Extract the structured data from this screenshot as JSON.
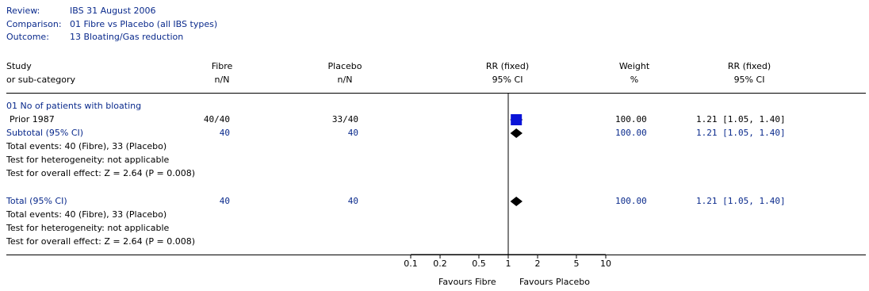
{
  "meta": {
    "review_label": "Review:",
    "review_value": "IBS 31 August 2006",
    "comparison_label": "Comparison:",
    "comparison_value": "01 Fibre vs Placebo (all IBS types)",
    "outcome_label": "Outcome:",
    "outcome_value": "13 Bloating/Gas reduction"
  },
  "headers": {
    "study_1": "Study",
    "study_2": "or sub-category",
    "fibre_1": "Fibre",
    "fibre_2": "n/N",
    "placebo_1": "Placebo",
    "placebo_2": "n/N",
    "rr_1": "RR (fixed)",
    "rr_2": "95% CI",
    "weight_1": "Weight",
    "weight_2": "%",
    "rr2_1": "RR (fixed)",
    "rr2_2": "95% CI"
  },
  "rows": {
    "group_title": "01 No of patients with bloating",
    "study_name": "Prior 1987",
    "study_fibre": "40/40",
    "study_placebo": "33/40",
    "study_weight": "100.00",
    "study_ci": "1.21 [1.05, 1.40]",
    "subtotal_label": "Subtotal (95% CI)",
    "subtotal_fibre": "40",
    "subtotal_placebo": "40",
    "subtotal_weight": "100.00",
    "subtotal_ci": "1.21 [1.05, 1.40]",
    "sub_events": "Total events: 40 (Fibre), 33 (Placebo)",
    "sub_het": "Test for heterogeneity: not applicable",
    "sub_effect": "Test for overall effect: Z = 2.64 (P = 0.008)",
    "total_label": "Total (95% CI)",
    "total_fibre": "40",
    "total_placebo": "40",
    "total_weight": "100.00",
    "total_ci": "1.21 [1.05, 1.40]",
    "total_events": "Total events: 40 (Fibre), 33 (Placebo)",
    "total_het": "Test for heterogeneity: not applicable",
    "total_effect": "Test for overall effect: Z = 2.64 (P = 0.008)"
  },
  "axis": {
    "favours_left": "Favours Fibre",
    "favours_right": "Favours Placebo"
  },
  "colors": {
    "study_marker": "#0a14d8",
    "diamond": "#000000",
    "text_blue": "#0a2a8c"
  },
  "chart_data": {
    "type": "forest",
    "scale": "log",
    "xlim": [
      0.1,
      10
    ],
    "reference_line": 1,
    "ticks": [
      {
        "value": 0.1,
        "label": "0.1"
      },
      {
        "value": 0.2,
        "label": "0.2"
      },
      {
        "value": 0.5,
        "label": "0.5"
      },
      {
        "value": 1,
        "label": "1"
      },
      {
        "value": 2,
        "label": "2"
      },
      {
        "value": 5,
        "label": "5"
      },
      {
        "value": 10,
        "label": "10"
      }
    ],
    "studies": [
      {
        "name": "Prior 1987",
        "rr": 1.21,
        "lower": 1.05,
        "upper": 1.4,
        "weight": 100.0
      }
    ],
    "subtotal": {
      "rr": 1.21,
      "lower": 1.05,
      "upper": 1.4
    },
    "total": {
      "rr": 1.21,
      "lower": 1.05,
      "upper": 1.4
    }
  }
}
